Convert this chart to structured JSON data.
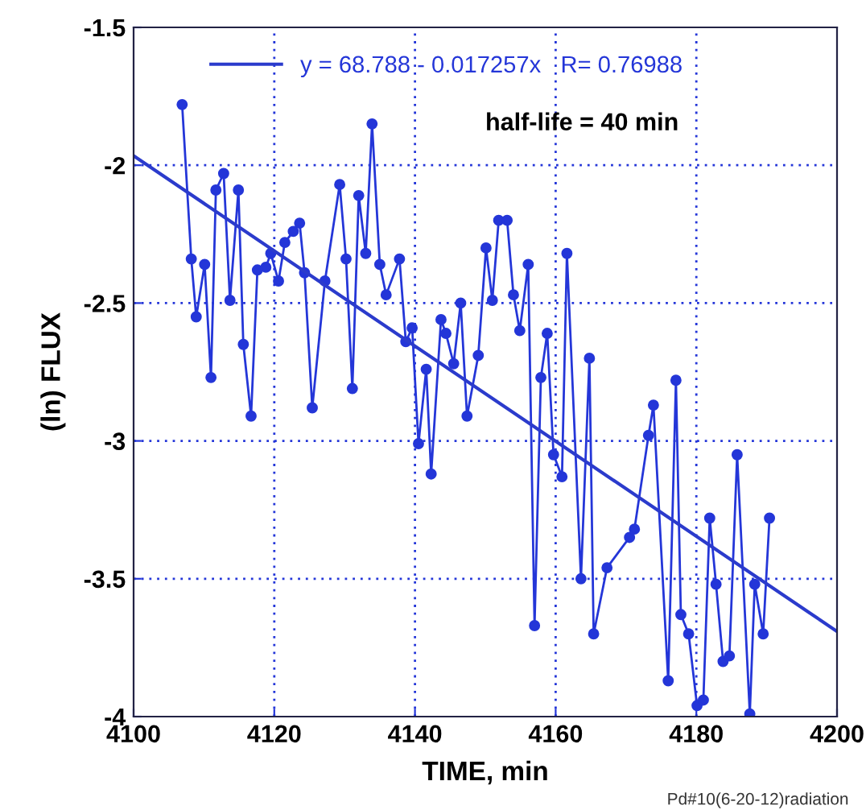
{
  "chart_data": {
    "type": "line",
    "xlabel": "TIME, min",
    "ylabel": "(ln) FLUX",
    "xlim": [
      4100,
      4200
    ],
    "ylim": [
      -4,
      -1.5
    ],
    "xticks": [
      4100,
      4120,
      4140,
      4160,
      4180,
      4200
    ],
    "yticks": [
      -4,
      -3.5,
      -3,
      -2.5,
      -2,
      -1.5
    ],
    "grid": true,
    "legend": "top left",
    "annotations": [
      "half-life = 40 min",
      "Pd#10(6-20-12)radiation"
    ],
    "series": [
      {
        "color": "#2436d8",
        "marker": "circle",
        "x": [
          4106.9,
          4108.2,
          4108.9,
          4110.1,
          4111.0,
          4111.7,
          4112.8,
          4113.7,
          4114.9,
          4115.6,
          4116.7,
          4117.6,
          4118.8,
          4119.5,
          4120.6,
          4121.5,
          4122.7,
          4123.6,
          4124.3,
          4125.4,
          4127.2,
          4129.3,
          4130.2,
          4131.1,
          4132.0,
          4133.0,
          4133.9,
          4135.0,
          4135.9,
          4137.8,
          4138.7,
          4139.6,
          4140.5,
          4141.6,
          4142.3,
          4143.7,
          4144.4,
          4145.5,
          4146.5,
          4147.4,
          4149.0,
          4150.1,
          4151.0,
          4151.9,
          4153.1,
          4154.0,
          4154.9,
          4156.1,
          4157.0,
          4157.9,
          4158.8,
          4159.7,
          4160.9,
          4161.6,
          4163.6,
          4164.8,
          4165.4,
          4167.3,
          4170.5,
          4171.2,
          4173.2,
          4173.9,
          4176.0,
          4177.1,
          4177.8,
          4178.9,
          4180.1,
          4181.0,
          4181.9,
          4182.8,
          4183.8,
          4184.7,
          4185.8,
          4187.6,
          4188.3,
          4189.5,
          4190.4
        ],
        "values": [
          -1.78,
          -2.34,
          -2.55,
          -2.36,
          -2.77,
          -2.09,
          -2.03,
          -2.49,
          -2.09,
          -2.65,
          -2.91,
          -2.38,
          -2.37,
          -2.32,
          -2.42,
          -2.28,
          -2.24,
          -2.21,
          -2.39,
          -2.88,
          -2.42,
          -2.07,
          -2.34,
          -2.81,
          -2.11,
          -2.32,
          -1.85,
          -2.36,
          -2.47,
          -2.34,
          -2.64,
          -2.59,
          -3.01,
          -2.74,
          -3.12,
          -2.56,
          -2.61,
          -2.72,
          -2.5,
          -2.91,
          -2.69,
          -2.3,
          -2.49,
          -2.2,
          -2.2,
          -2.47,
          -2.6,
          -2.36,
          -3.67,
          -2.77,
          -2.61,
          -3.05,
          -3.13,
          -2.32,
          -3.5,
          -2.7,
          -3.7,
          -3.46,
          -3.35,
          -3.32,
          -2.98,
          -2.87,
          -3.87,
          -2.78,
          -3.63,
          -3.7,
          -3.96,
          -3.94,
          -3.28,
          -3.52,
          -3.8,
          -3.78,
          -3.05,
          -3.99,
          -3.52,
          -3.7,
          -3.28
        ]
      },
      {
        "name": "y = 68.788 - 0.017257x   R= 0.76988",
        "color": "#2b3bcc",
        "marker": "none",
        "x": [
          4100,
          4200
        ],
        "values": [
          -1.966,
          -3.691
        ]
      }
    ]
  }
}
